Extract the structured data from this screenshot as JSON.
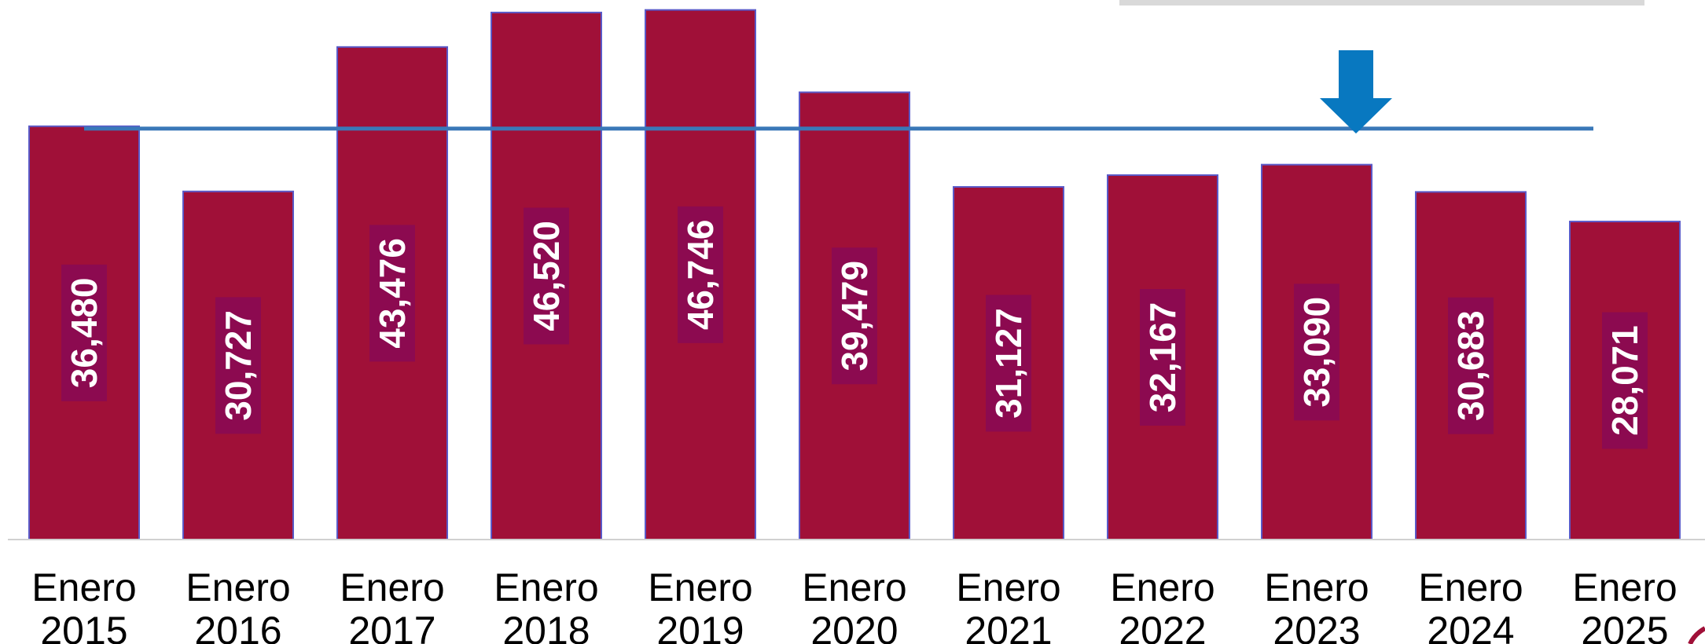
{
  "chart_data": {
    "type": "bar",
    "categories": [
      [
        "Enero",
        "2015"
      ],
      [
        "Enero",
        "2016"
      ],
      [
        "Enero",
        "2017"
      ],
      [
        "Enero",
        "2018"
      ],
      [
        "Enero",
        "2019"
      ],
      [
        "Enero",
        "2020"
      ],
      [
        "Enero",
        "2021"
      ],
      [
        "Enero",
        "2022"
      ],
      [
        "Enero",
        "2023"
      ],
      [
        "Enero",
        "2024"
      ],
      [
        "Enero",
        "2025"
      ]
    ],
    "values": [
      36480,
      30727,
      43476,
      46520,
      46746,
      39479,
      31127,
      32167,
      33090,
      30683,
      28071
    ],
    "value_labels": [
      "36,480",
      "30,727",
      "43,476",
      "46,520",
      "46,746",
      "39,479",
      "31,127",
      "32,167",
      "33,090",
      "30,683",
      "28,071"
    ],
    "reference_line": 36480,
    "marker": {
      "type": "arrow-down",
      "category_index": 8
    },
    "ylim": [
      0,
      47000
    ],
    "grid": false,
    "colors": {
      "bar": "#A01038",
      "bar_edge": "#5A5AC8",
      "label_bg": "#8C0A50",
      "reference_line": "#3A78B8",
      "arrow": "#0878C0",
      "top_bar": "#D9D9D9",
      "axis": "#D0D0D0",
      "corner_swoosh": "#A01038"
    }
  }
}
